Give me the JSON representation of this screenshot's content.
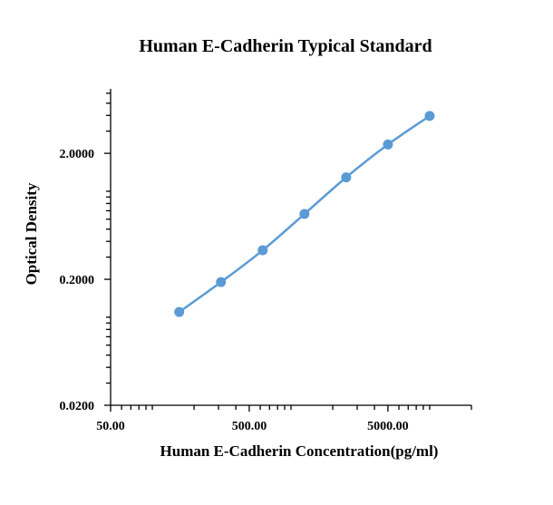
{
  "chart_data": {
    "type": "scatter",
    "title": "Human E-Cadherin Typical Standard",
    "xlabel": "Human E-Cadherin  Concentration(pg/ml)",
    "ylabel": "Optical Density",
    "xscale": "log",
    "yscale": "log",
    "xlim": [
      50,
      20000
    ],
    "ylim": [
      0.02,
      6.5
    ],
    "x_tick_labels": [
      "50.00",
      "500.00",
      "5000.00"
    ],
    "x_tick_values": [
      50,
      500,
      5000
    ],
    "y_tick_labels": [
      "0.0200",
      "0.2000",
      "2.0000"
    ],
    "y_tick_values": [
      0.02,
      0.2,
      2.0
    ],
    "grid": false,
    "legend": "none",
    "series": [
      {
        "color": "#5b9bd5",
        "x": [
          156.25,
          312.5,
          625,
          1250,
          2500,
          5000,
          10000
        ],
        "y": [
          0.11,
          0.19,
          0.34,
          0.66,
          1.29,
          2.35,
          3.96
        ]
      }
    ]
  }
}
